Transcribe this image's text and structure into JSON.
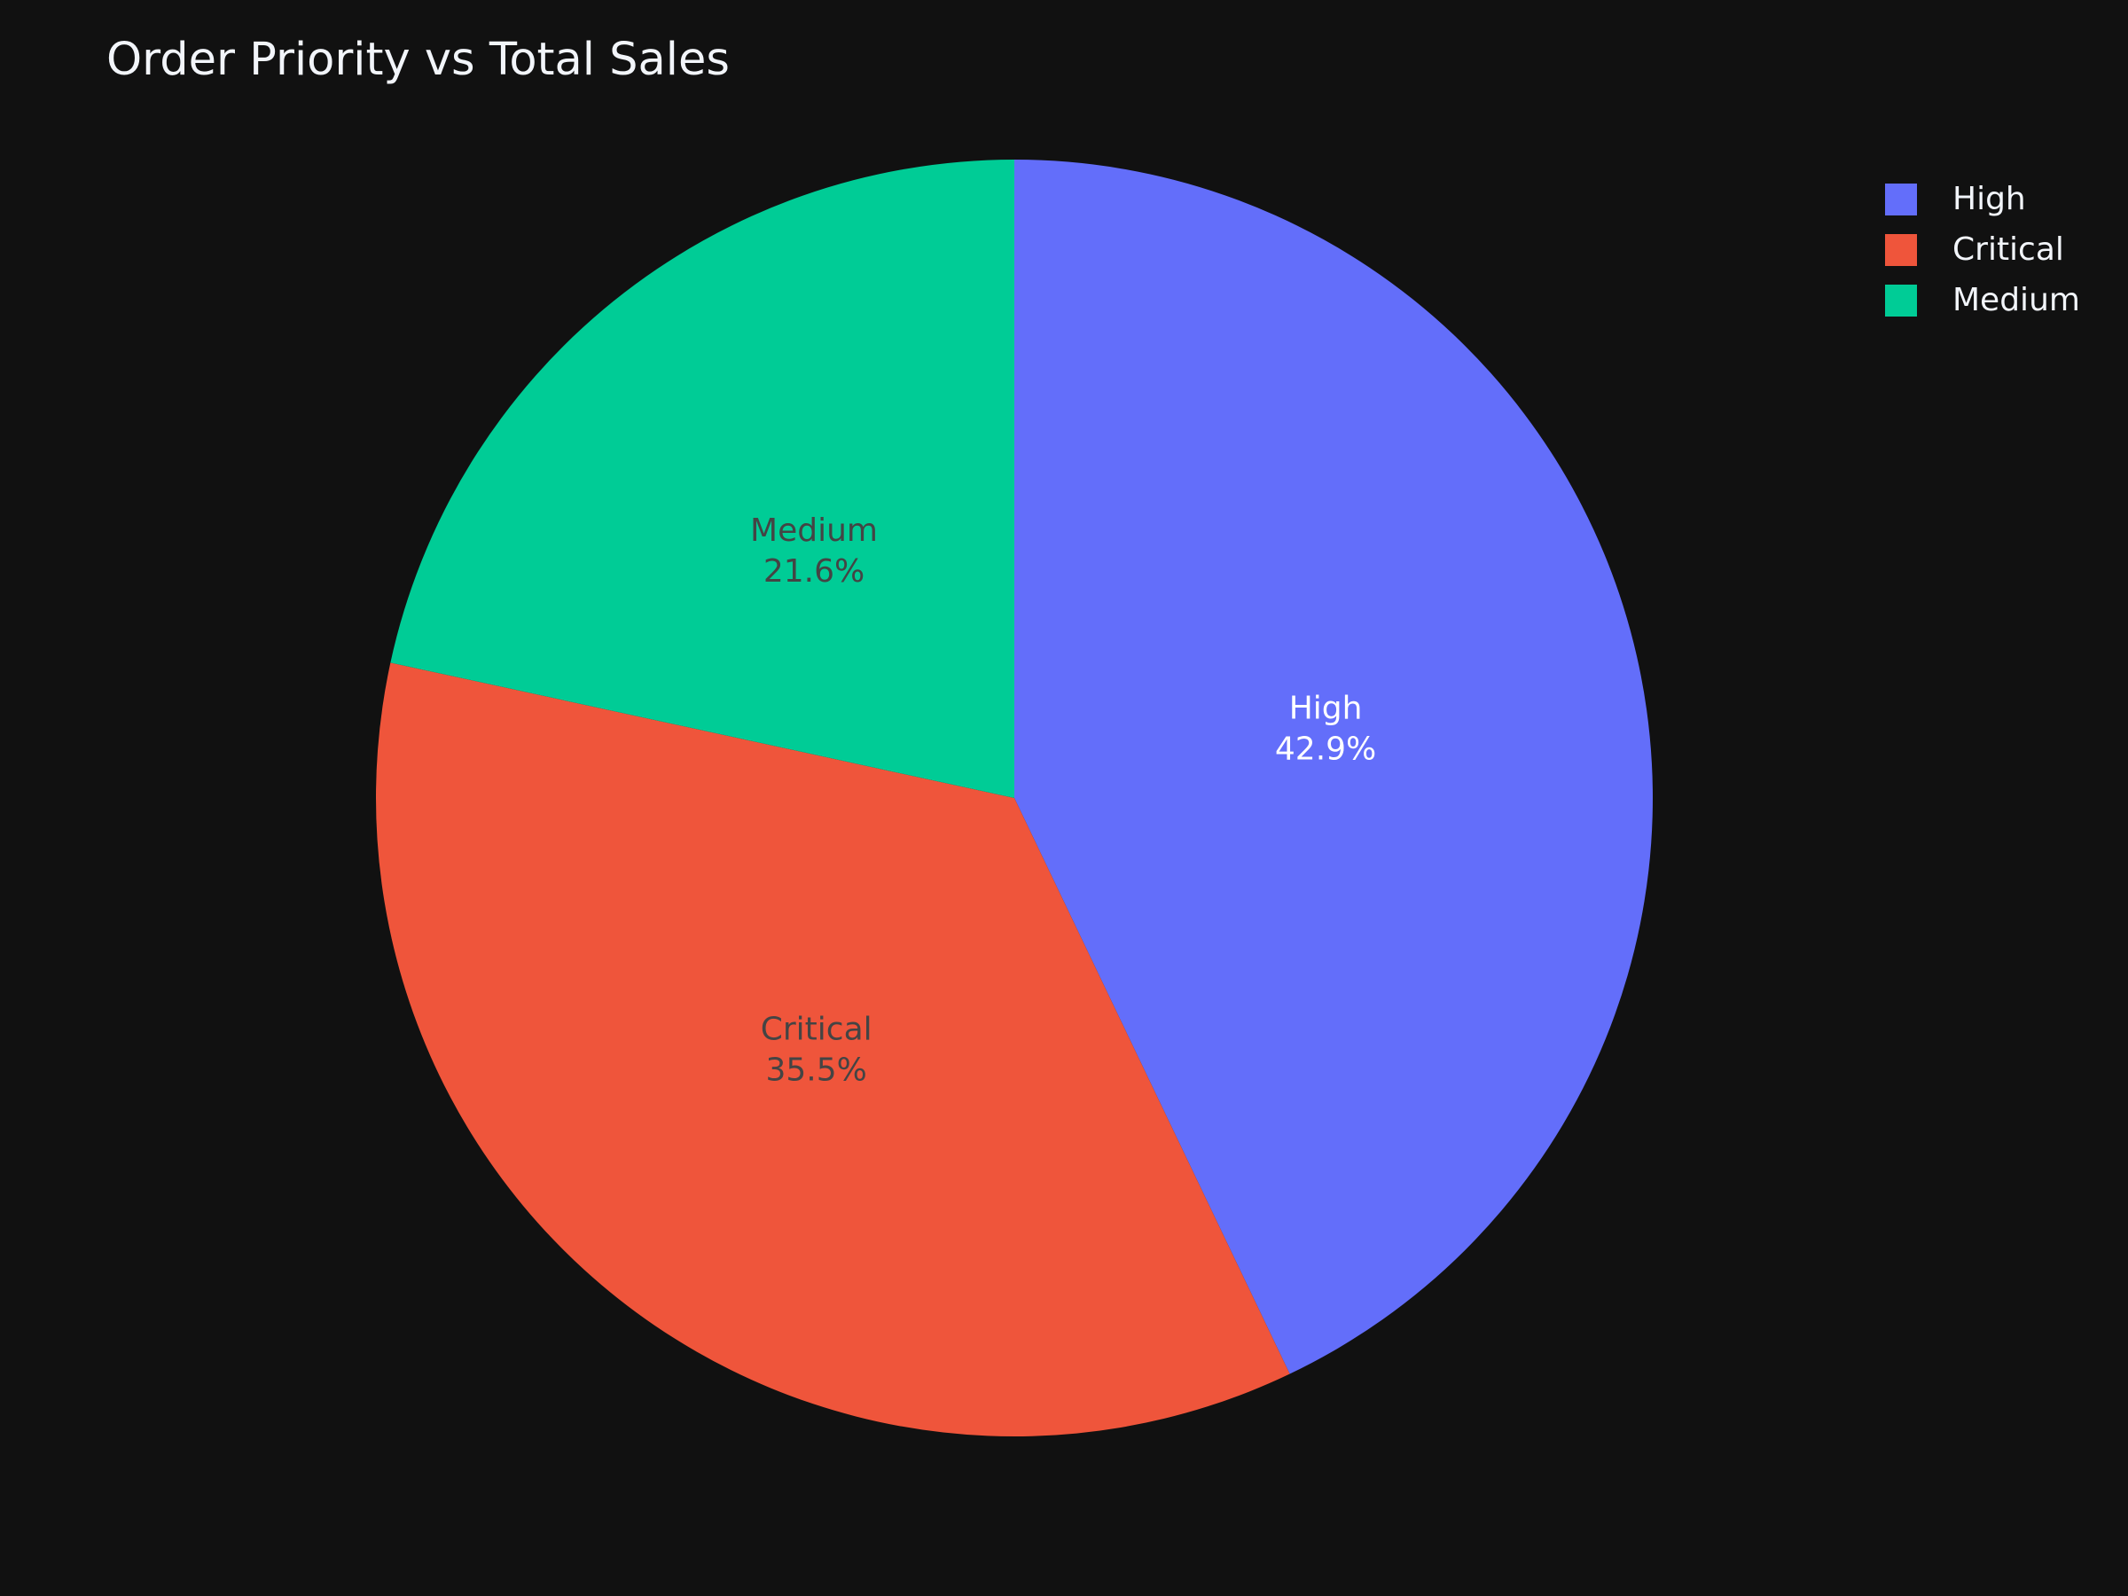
{
  "chart_data": {
    "type": "pie",
    "title": "Order Priority vs Total Sales",
    "categories": [
      "High",
      "Critical",
      "Medium"
    ],
    "values": [
      42.9,
      35.5,
      21.6
    ],
    "value_labels": [
      "42.9%",
      "35.5%",
      "21.6%"
    ],
    "colors": [
      "#636efa",
      "#EF553B",
      "#00cc96"
    ],
    "label_text_colors": [
      "#ffffff",
      "#444444",
      "#444444"
    ],
    "legend": "top-right",
    "direction": "clockwise",
    "start": "top"
  }
}
